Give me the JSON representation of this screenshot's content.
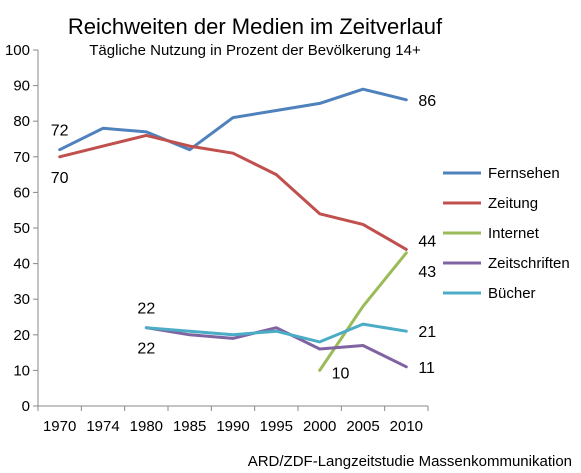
{
  "chart_data": {
    "type": "line",
    "title": "Reichweiten der Medien im Zeitverlauf",
    "subtitle": "Tägliche Nutzung in Prozent der Bevölkerung 14+",
    "source": "ARD/ZDF-Langzeitstudie Massenkommunikation",
    "xlabel": "",
    "ylabel": "",
    "x": [
      "1970",
      "1974",
      "1980",
      "1985",
      "1990",
      "1995",
      "2000",
      "2005",
      "2010"
    ],
    "ylim": [
      0,
      100
    ],
    "yticks": [
      "0",
      "10",
      "20",
      "30",
      "40",
      "50",
      "60",
      "70",
      "80",
      "90",
      "100"
    ],
    "legend_position": "right",
    "grid": false,
    "series": [
      {
        "name": "Fernsehen",
        "color": "#4f81bd",
        "values": [
          72,
          78,
          77,
          72,
          81,
          83,
          85,
          89,
          86
        ]
      },
      {
        "name": "Zeitung",
        "color": "#c0504d",
        "values": [
          70,
          73,
          76,
          73,
          71,
          65,
          54,
          51,
          44
        ]
      },
      {
        "name": "Internet",
        "color": "#9bbb59",
        "values": [
          null,
          null,
          null,
          null,
          null,
          null,
          10,
          28,
          43
        ]
      },
      {
        "name": "Zeitschriften",
        "color": "#8064a2",
        "values": [
          null,
          null,
          22,
          20,
          19,
          22,
          16,
          17,
          11
        ]
      },
      {
        "name": "Bücher",
        "color": "#4bacc6",
        "values": [
          null,
          null,
          22,
          21,
          20,
          21,
          18,
          23,
          21
        ]
      }
    ],
    "data_labels": [
      {
        "series": 0,
        "point": 0,
        "text": "72",
        "pos": "above"
      },
      {
        "series": 1,
        "point": 0,
        "text": "70",
        "pos": "below"
      },
      {
        "series": 0,
        "point": 8,
        "text": "86",
        "pos": "right"
      },
      {
        "series": 1,
        "point": 8,
        "text": "44",
        "pos": "right-above"
      },
      {
        "series": 2,
        "point": 8,
        "text": "43",
        "pos": "right-below"
      },
      {
        "series": 2,
        "point": 6,
        "text": "10",
        "pos": "right-low"
      },
      {
        "series": 4,
        "point": 2,
        "text": "22",
        "pos": "above"
      },
      {
        "series": 3,
        "point": 2,
        "text": "22",
        "pos": "below"
      },
      {
        "series": 4,
        "point": 8,
        "text": "21",
        "pos": "right"
      },
      {
        "series": 3,
        "point": 8,
        "text": "11",
        "pos": "right"
      }
    ]
  }
}
